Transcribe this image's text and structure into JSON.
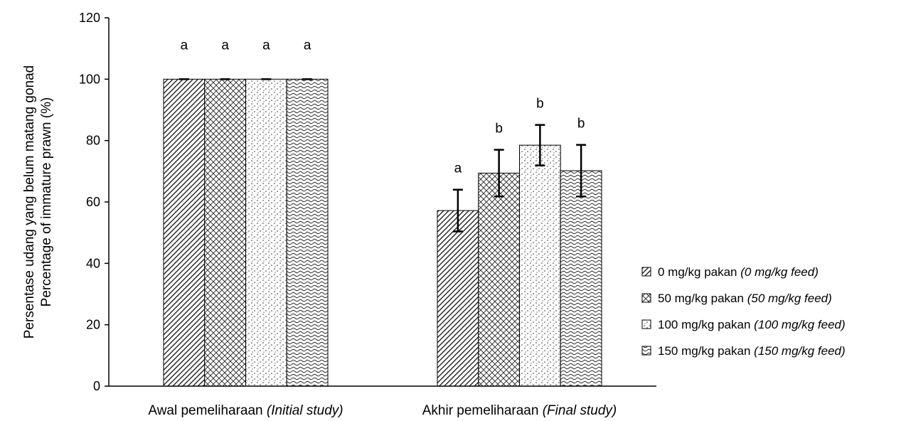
{
  "chart_data": {
    "type": "bar",
    "ylabel_lines": [
      "Persentase udang yang belum matang gonad",
      "Percentage of immature prawn (%)"
    ],
    "ylim": [
      0,
      120
    ],
    "yticks": [
      0,
      20,
      40,
      60,
      80,
      100,
      120
    ],
    "grid": false,
    "legend_position": "right",
    "categories": [
      {
        "main": "Awal pemeliharaan ",
        "italic": "(Initial study)"
      },
      {
        "main": "Akhir pemeliharaan ",
        "italic": "(Final study)"
      }
    ],
    "series": [
      {
        "name": "0 mg/kg pakan ",
        "name_italic": "(0 mg/kg feed)",
        "pattern": "diagonal",
        "values": [
          100,
          57.2
        ],
        "errors": [
          0,
          6.8
        ],
        "letters": [
          "a",
          "a"
        ]
      },
      {
        "name": "50 mg/kg pakan ",
        "name_italic": "(50 mg/kg feed)",
        "pattern": "crosshatch",
        "values": [
          100,
          69.4
        ],
        "errors": [
          0,
          7.6
        ],
        "letters": [
          "a",
          "b"
        ]
      },
      {
        "name": "100 mg/kg pakan ",
        "name_italic": "(100 mg/kg feed)",
        "pattern": "dots",
        "values": [
          100,
          78.5
        ],
        "errors": [
          0,
          6.6
        ],
        "letters": [
          "a",
          "b"
        ]
      },
      {
        "name": "150 mg/kg pakan ",
        "name_italic": "(150 mg/kg feed)",
        "pattern": "waves",
        "values": [
          100,
          70.2
        ],
        "errors": [
          0,
          8.4
        ],
        "letters": [
          "a",
          "b"
        ]
      }
    ]
  }
}
